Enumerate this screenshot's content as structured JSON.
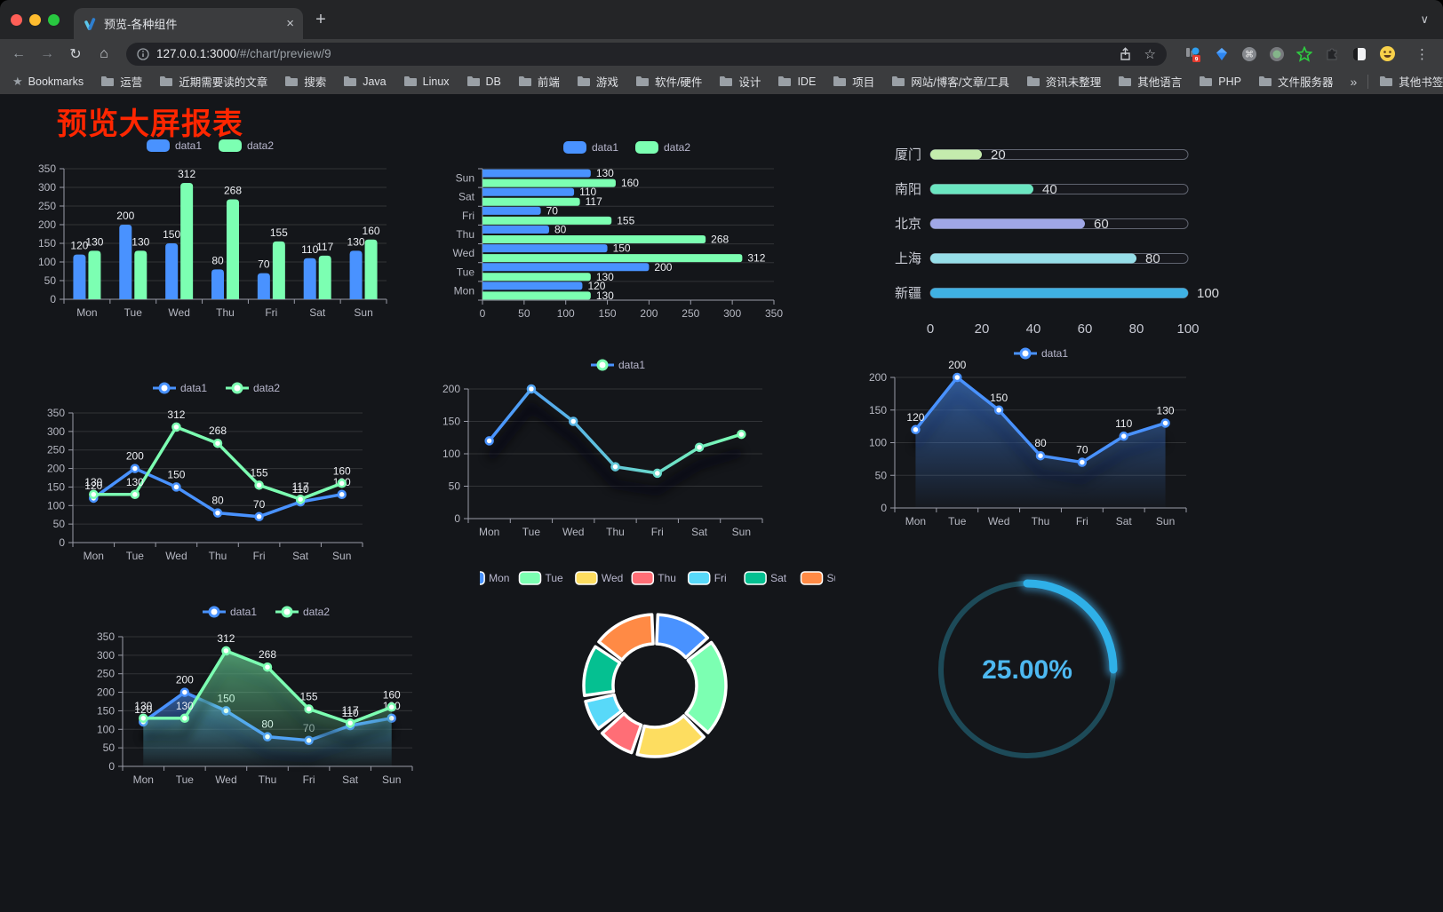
{
  "browser": {
    "tab": {
      "title": "预览-各种组件",
      "close_icon": "×",
      "new_tab_icon": "+",
      "strip_chevron": "∨"
    },
    "toolbar": {
      "back_icon": "←",
      "forward_icon": "→",
      "reload_icon": "↻",
      "home_icon": "⌂",
      "url_host": "127.0.0.1:3000",
      "url_path": "/#/chart/preview/9",
      "star_icon": "☆",
      "menu_icon": "⋮",
      "extension_badge": "9"
    },
    "bookmarks": {
      "label": "Bookmarks",
      "items": [
        "运营",
        "近期需要读的文章",
        "搜索",
        "Java",
        "Linux",
        "DB",
        "前端",
        "游戏",
        "软件/硬件",
        "设计",
        "IDE",
        "项目",
        "网站/博客/文章/工具",
        "资讯未整理",
        "其他语言",
        "PHP",
        "文件服务器"
      ],
      "overflow": "»",
      "other": "其他书签"
    }
  },
  "page": {
    "title": "预览大屏报表",
    "title_color": "#ff2600",
    "bg": "#14161a"
  },
  "chart_data": [
    {
      "type": "bar",
      "categories": [
        "Mon",
        "Tue",
        "Wed",
        "Thu",
        "Fri",
        "Sat",
        "Sun"
      ],
      "series": [
        {
          "name": "data1",
          "color": "#4992ff",
          "values": [
            120,
            200,
            150,
            80,
            70,
            110,
            130
          ]
        },
        {
          "name": "data2",
          "color": "#7cffb2",
          "values": [
            130,
            130,
            312,
            268,
            155,
            117,
            160
          ]
        }
      ],
      "ylim": [
        0,
        350
      ],
      "ytick_step": 50,
      "legend_position": "top",
      "grid": true,
      "show_labels": true
    },
    {
      "type": "bar-horizontal",
      "categories": [
        "Mon",
        "Tue",
        "Wed",
        "Thu",
        "Fri",
        "Sat",
        "Sun"
      ],
      "series": [
        {
          "name": "data1",
          "color": "#4992ff",
          "values": [
            120,
            200,
            150,
            80,
            70,
            110,
            130
          ]
        },
        {
          "name": "data2",
          "color": "#7cffb2",
          "values": [
            130,
            130,
            312,
            268,
            155,
            117,
            160
          ]
        }
      ],
      "xlim": [
        0,
        350
      ],
      "xtick_step": 50,
      "legend_position": "top",
      "grid": true,
      "show_labels": true
    },
    {
      "type": "progress",
      "items": [
        {
          "label": "厦门",
          "value": 20,
          "color": "#c4ebad"
        },
        {
          "label": "南阳",
          "value": 40,
          "color": "#6be6c1"
        },
        {
          "label": "北京",
          "value": 60,
          "color": "#a0a7e6"
        },
        {
          "label": "上海",
          "value": 80,
          "color": "#96dee8"
        },
        {
          "label": "新疆",
          "value": 100,
          "color": "#3fb1e3"
        }
      ],
      "xlim": [
        0,
        100
      ],
      "xticks": [
        0,
        20,
        40,
        60,
        80,
        100
      ]
    },
    {
      "type": "line",
      "categories": [
        "Mon",
        "Tue",
        "Wed",
        "Thu",
        "Fri",
        "Sat",
        "Sun"
      ],
      "series": [
        {
          "name": "data1",
          "color": "#4992ff",
          "values": [
            120,
            200,
            150,
            80,
            70,
            110,
            130
          ]
        },
        {
          "name": "data2",
          "color": "#7cffb2",
          "values": [
            130,
            130,
            312,
            268,
            155,
            117,
            160
          ]
        }
      ],
      "ylim": [
        0,
        350
      ],
      "ytick_step": 50,
      "legend_position": "top",
      "grid": true,
      "show_labels": true
    },
    {
      "type": "line",
      "categories": [
        "Mon",
        "Tue",
        "Wed",
        "Thu",
        "Fri",
        "Sat",
        "Sun"
      ],
      "series": [
        {
          "name": "data1",
          "color_gradient": [
            "#4992ff",
            "#7cffb2"
          ],
          "values": [
            120,
            200,
            150,
            80,
            70,
            110,
            130
          ],
          "shadow": true
        }
      ],
      "ylim": [
        0,
        200
      ],
      "ytick_step": 50,
      "legend_position": "top",
      "grid": true,
      "show_labels": false
    },
    {
      "type": "line",
      "categories": [
        "Mon",
        "Tue",
        "Wed",
        "Thu",
        "Fri",
        "Sat",
        "Sun"
      ],
      "series": [
        {
          "name": "data1",
          "color": "#4992ff",
          "values": [
            120,
            200,
            150,
            80,
            70,
            110,
            130
          ],
          "area": true,
          "shadow": true
        }
      ],
      "ylim": [
        0,
        200
      ],
      "ytick_step": 50,
      "legend_position": "top",
      "grid": true,
      "show_labels": true
    },
    {
      "type": "line",
      "categories": [
        "Mon",
        "Tue",
        "Wed",
        "Thu",
        "Fri",
        "Sat",
        "Sun"
      ],
      "series": [
        {
          "name": "data1",
          "color": "#4992ff",
          "values": [
            120,
            200,
            150,
            80,
            70,
            110,
            130
          ],
          "area": true,
          "shadow": true
        },
        {
          "name": "data2",
          "color": "#7cffb2",
          "values": [
            130,
            130,
            312,
            268,
            155,
            117,
            160
          ],
          "area": true,
          "shadow": true
        }
      ],
      "ylim": [
        0,
        350
      ],
      "ytick_step": 50,
      "legend_position": "top",
      "grid": true,
      "show_labels": true
    },
    {
      "type": "pie",
      "legend_position": "top",
      "items": [
        {
          "label": "Mon",
          "value": 120,
          "color": "#4992ff"
        },
        {
          "label": "Tue",
          "value": 200,
          "color": "#7cffb2"
        },
        {
          "label": "Wed",
          "value": 150,
          "color": "#fddd60"
        },
        {
          "label": "Thu",
          "value": 80,
          "color": "#ff6e76"
        },
        {
          "label": "Fri",
          "value": 70,
          "color": "#58d9f9"
        },
        {
          "label": "Sat",
          "value": 110,
          "color": "#05c091"
        },
        {
          "label": "Sun",
          "value": 130,
          "color": "#ff8a45"
        }
      ]
    },
    {
      "type": "gauge",
      "value": 25,
      "label": "25.00%",
      "progress_color": "#2fb0e8",
      "track_color": "#1d4a58",
      "text_color": "#4db8f0"
    }
  ]
}
